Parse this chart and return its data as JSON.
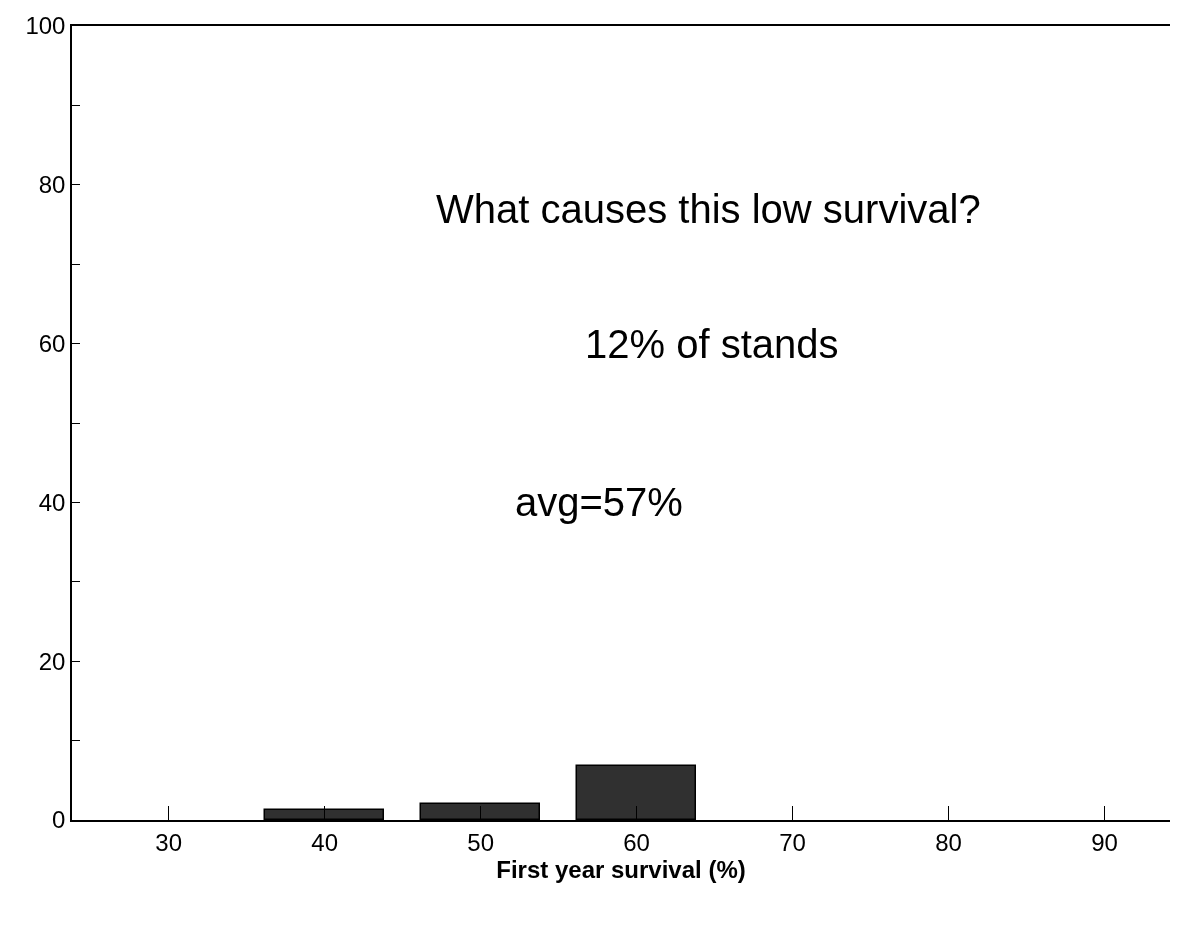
{
  "chart_data": {
    "type": "bar",
    "x": [
      40,
      50,
      60
    ],
    "values": [
      1.2,
      2.0,
      6.8
    ],
    "color": "#303030",
    "xlabel": "First year survival (%)",
    "xlim": [
      23.8,
      94.2
    ],
    "xticks": [
      30,
      40,
      50,
      60,
      70,
      80,
      90
    ],
    "ylim": [
      0,
      100
    ],
    "yticks": [
      0,
      {
        "value": 10,
        "label": null
      },
      20,
      {
        "value": 30,
        "label": null
      },
      40,
      {
        "value": 50,
        "label": null
      },
      60,
      {
        "value": 70,
        "label": null
      },
      80,
      {
        "value": 90,
        "label": null
      },
      100
    ],
    "annotations": [
      "What causes this low survival?",
      "12% of stands",
      "avg=57%"
    ]
  }
}
